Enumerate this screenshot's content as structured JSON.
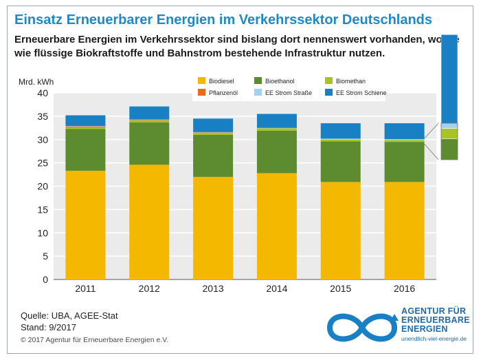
{
  "title": "Einsatz Erneuerbarer Energien im Verkehrssektor Deutschlands",
  "subtitle": "Erneuerbare Energien im Verkehrssektor sind bislang dort nennenswert vorhanden, wo sie wie flüssige Biokraftstoffe und Bahnstrom bestehende Infrastruktur nutzen.",
  "source": {
    "line1": "Quelle: UBA, AGEE-Stat",
    "line2": "Stand: 9/2017"
  },
  "copyright": "© 2017 Agentur für Erneuerbare Energien e.V.",
  "logo": {
    "line1": "AGENTUR FÜR",
    "line2": "ERNEUERBARE",
    "line3": "ENERGIEN",
    "url": "unendlich-viel-energie.de"
  },
  "colors": {
    "title": "#1d8ac7",
    "Biodiesel": "#f5b800",
    "Bioethanol": "#5d8c30",
    "Biomethan": "#a8c422",
    "Pflanzenöl": "#ea6a1a",
    "EE Strom Straße": "#a8cfee",
    "EE Strom Schiene": "#1a80c4",
    "plot_background": "#ebebeb",
    "gridline": "#ffffff"
  },
  "chart_data": {
    "type": "bar",
    "stacked": true,
    "title": "Einsatz Erneuerbarer Energien im Verkehrssektor Deutschlands",
    "ylabel": "Mrd. kWh",
    "xlabel": "",
    "ylim": [
      0,
      40
    ],
    "yticks": [
      0,
      5,
      10,
      15,
      20,
      25,
      30,
      35,
      40
    ],
    "grid": true,
    "legend_position": "top",
    "categories": [
      "2011",
      "2012",
      "2013",
      "2014",
      "2015",
      "2016"
    ],
    "series": [
      {
        "name": "Biodiesel",
        "values": [
          23.3,
          24.6,
          22.0,
          22.8,
          20.9,
          20.9
        ]
      },
      {
        "name": "Bioethanol",
        "values": [
          9.0,
          9.1,
          9.0,
          9.1,
          8.7,
          8.6
        ]
      },
      {
        "name": "Biomethan",
        "values": [
          0.3,
          0.4,
          0.4,
          0.5,
          0.4,
          0.4
        ]
      },
      {
        "name": "Pflanzenöl",
        "values": [
          0.2,
          0.1,
          0.1,
          0.0,
          0.0,
          0.0
        ]
      },
      {
        "name": "EE Strom Straße",
        "values": [
          0.1,
          0.1,
          0.1,
          0.1,
          0.2,
          0.2
        ]
      },
      {
        "name": "EE Strom Schiene",
        "values": [
          2.3,
          2.8,
          2.9,
          3.0,
          3.3,
          3.4
        ]
      }
    ],
    "annotation": "magnified inset of the small segments next to the 2016 bar"
  }
}
